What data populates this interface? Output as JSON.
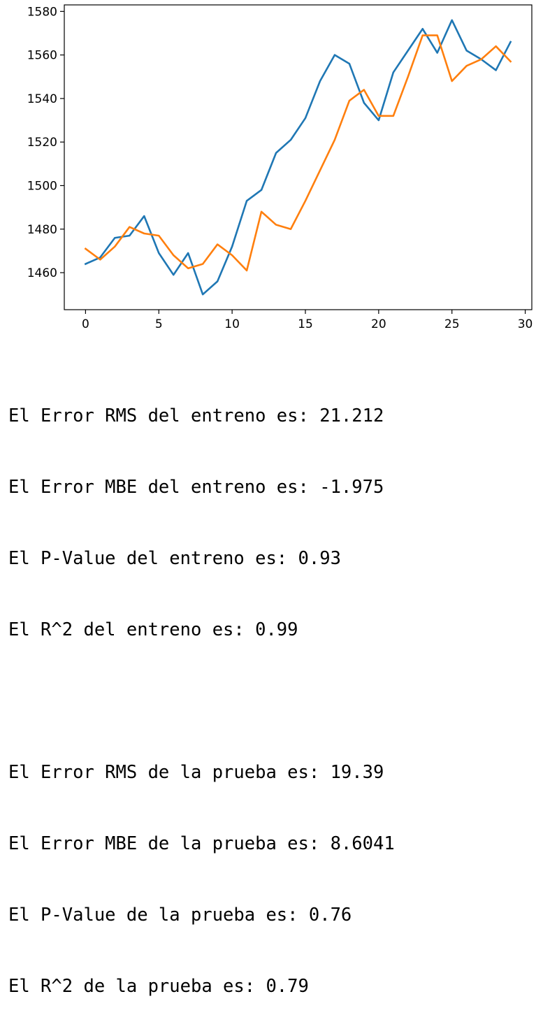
{
  "chart_data": {
    "type": "line",
    "title": "",
    "xlabel": "",
    "ylabel": "",
    "xlim": [
      -1.45,
      30.45
    ],
    "ylim": [
      1443,
      1583
    ],
    "xticks": [
      0,
      5,
      10,
      15,
      20,
      25,
      30
    ],
    "yticks": [
      1460,
      1480,
      1500,
      1520,
      1540,
      1560,
      1580
    ],
    "grid": false,
    "legend": "none",
    "x": [
      0,
      1,
      2,
      3,
      4,
      5,
      6,
      7,
      8,
      9,
      10,
      11,
      12,
      13,
      14,
      15,
      16,
      17,
      18,
      19,
      20,
      21,
      22,
      23,
      24,
      25,
      26,
      27,
      28,
      29
    ],
    "series": [
      {
        "color": "#1f77b4",
        "values": [
          1464,
          1467,
          1476,
          1477,
          1486,
          1469,
          1459,
          1469,
          1450,
          1456,
          1472,
          1493,
          1498,
          1515,
          1521,
          1531,
          1548,
          1560,
          1556,
          1538,
          1530,
          1552,
          1562,
          1572,
          1561,
          1576,
          1562,
          1558,
          1553,
          1566
        ]
      },
      {
        "color": "#ff7f0e",
        "values": [
          1471,
          1466,
          1472,
          1481,
          1478,
          1477,
          1468,
          1462,
          1464,
          1473,
          1468,
          1461,
          1488,
          1482,
          1480,
          1493,
          1507,
          1521,
          1539,
          1544,
          1532,
          1532,
          1550,
          1569,
          1569,
          1548,
          1555,
          1558,
          1564,
          1557
        ]
      }
    ]
  },
  "output": {
    "train": [
      "El Error RMS del entreno es: 21.212",
      "El Error MBE del entreno es: -1.975",
      "El P-Value del entreno es: 0.93",
      "El R^2 del entreno es: 0.99"
    ],
    "test": [
      "El Error RMS de la prueba es: 19.39",
      "El Error MBE de la prueba es: 8.6041",
      "El P-Value de la prueba es: 0.76",
      "El R^2 de la prueba es: 0.79"
    ]
  }
}
